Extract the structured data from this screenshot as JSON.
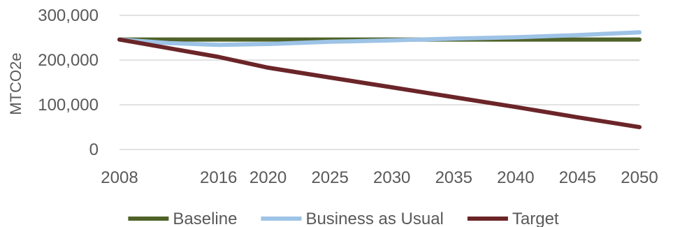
{
  "chart_data": {
    "type": "line",
    "title": "",
    "xlabel": "",
    "ylabel": "MTCO2e",
    "x": [
      2008,
      2016,
      2020,
      2025,
      2030,
      2035,
      2040,
      2045,
      2050
    ],
    "x_tick_labels": [
      "2008",
      "2016",
      "2020",
      "2025",
      "2030",
      "2035",
      "2040",
      "2045",
      "2050"
    ],
    "xlim": [
      2008,
      2050
    ],
    "ylim": [
      0,
      300000
    ],
    "y_ticks": [
      0,
      100000,
      200000,
      300000
    ],
    "y_tick_labels": [
      "0",
      "100,000",
      "200,000",
      "300,000"
    ],
    "grid": "horizontal",
    "legend_position": "bottom",
    "series": [
      {
        "name": "Baseline",
        "color": "#4f6228",
        "points": [
          [
            2008,
            246000
          ],
          [
            2016,
            246000
          ],
          [
            2020,
            246000
          ],
          [
            2025,
            246000
          ],
          [
            2030,
            246000
          ],
          [
            2035,
            246000
          ],
          [
            2040,
            246000
          ],
          [
            2045,
            246000
          ],
          [
            2050,
            246000
          ]
        ]
      },
      {
        "name": "Business as Usual",
        "color": "#9dc3e6",
        "points": [
          [
            2008,
            246000
          ],
          [
            2012,
            238000
          ],
          [
            2016,
            234000
          ],
          [
            2020,
            236000
          ],
          [
            2025,
            241000
          ],
          [
            2030,
            244000
          ],
          [
            2035,
            248000
          ],
          [
            2040,
            251000
          ],
          [
            2045,
            256000
          ],
          [
            2050,
            262000
          ]
        ]
      },
      {
        "name": "Target",
        "color": "#6b2528",
        "points": [
          [
            2008,
            246000
          ],
          [
            2016,
            207000
          ],
          [
            2020,
            183000
          ],
          [
            2025,
            161000
          ],
          [
            2030,
            139000
          ],
          [
            2035,
            117000
          ],
          [
            2040,
            95000
          ],
          [
            2045,
            72000
          ],
          [
            2050,
            50000
          ]
        ]
      }
    ]
  }
}
